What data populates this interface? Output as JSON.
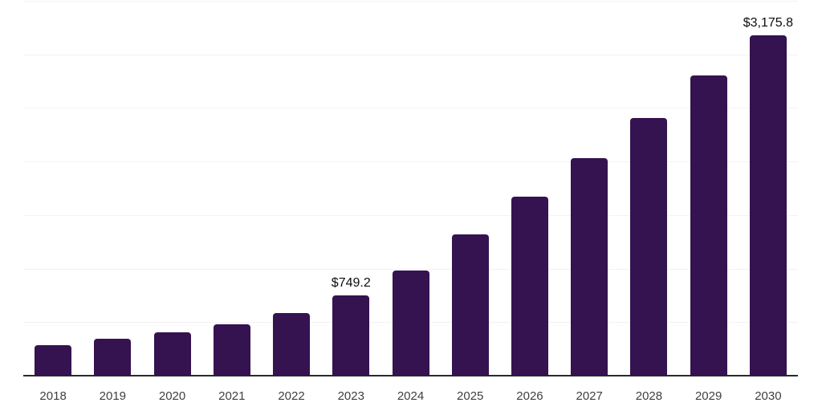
{
  "chart_data": {
    "type": "bar",
    "title": "",
    "xlabel": "",
    "ylabel": "",
    "categories": [
      "2018",
      "2019",
      "2020",
      "2021",
      "2022",
      "2023",
      "2024",
      "2025",
      "2026",
      "2027",
      "2028",
      "2029",
      "2030"
    ],
    "values": [
      285,
      345,
      405,
      480,
      585,
      749.2,
      980,
      1320,
      1670,
      2030,
      2405,
      2800,
      3175.8
    ],
    "data_labels": [
      null,
      null,
      null,
      null,
      null,
      "$749.2",
      null,
      null,
      null,
      null,
      null,
      null,
      "$3,175.8"
    ],
    "labeled_points": {
      "2023": "$749.2",
      "2030": "$3,175.8"
    },
    "estimation_note": "Only 2023 and 2030 carry printed labels; remaining values estimated from bar heights against gridlines",
    "ylim": [
      0,
      3500
    ],
    "gridline_step": 500,
    "grid": "horizontal-only",
    "y_axis_tick_labels_visible": false,
    "legend": "none",
    "colors": {
      "bar": "#351250",
      "axis_line": "#2a2a2a",
      "gridline": "#f2f2f2",
      "tick_label": "#404040",
      "data_label": "#0d0d0d",
      "background": "#ffffff"
    }
  }
}
